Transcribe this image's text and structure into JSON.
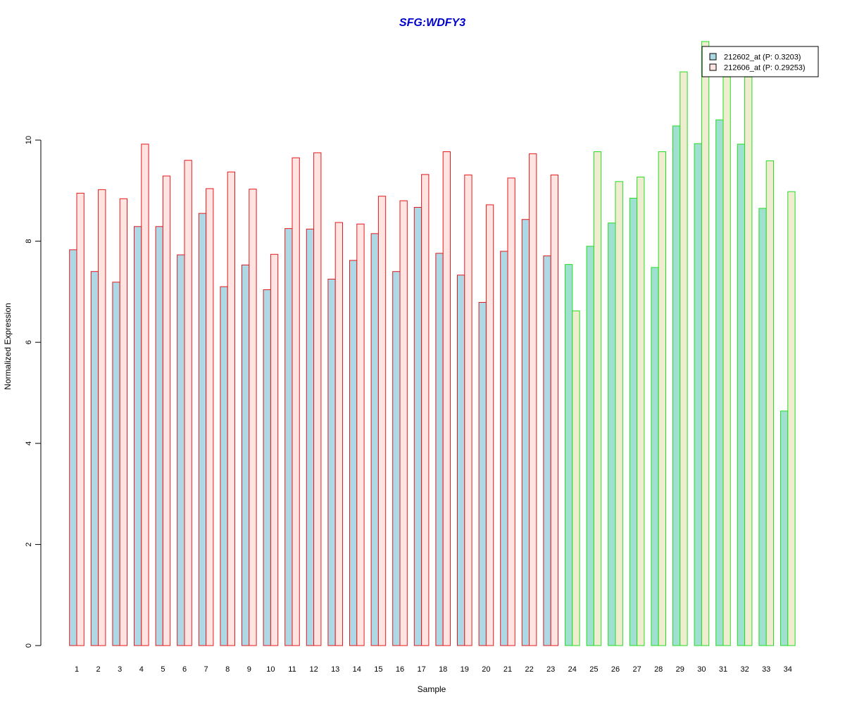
{
  "chart_data": {
    "type": "bar",
    "title": "SFG:WDFY3",
    "xlabel": "Sample",
    "ylabel": "Normalized Expression",
    "ylim": [
      0,
      12
    ],
    "yticks": [
      0,
      2,
      4,
      6,
      8,
      10
    ],
    "categories": [
      "1",
      "2",
      "3",
      "4",
      "5",
      "6",
      "7",
      "8",
      "9",
      "10",
      "11",
      "12",
      "13",
      "14",
      "15",
      "16",
      "17",
      "18",
      "19",
      "20",
      "21",
      "22",
      "23",
      "24",
      "25",
      "26",
      "27",
      "28",
      "29",
      "30",
      "31",
      "32",
      "33",
      "34"
    ],
    "groups": [
      {
        "from": 1,
        "to": 23,
        "border_color": "#e41a1c",
        "fills": [
          "#add8e6",
          "#ffe4e1"
        ]
      },
      {
        "from": 24,
        "to": 34,
        "border_color": "#22dd22",
        "fills": [
          "#a0e0d0",
          "#f0ecd0"
        ]
      }
    ],
    "series": [
      {
        "name": "212602_at (P: 0.3203)",
        "values": [
          7.83,
          7.4,
          7.19,
          8.29,
          8.29,
          7.73,
          8.55,
          7.1,
          7.53,
          7.04,
          8.25,
          8.24,
          7.25,
          7.62,
          8.15,
          7.4,
          8.67,
          7.76,
          7.33,
          6.79,
          7.8,
          8.43,
          7.71,
          7.54,
          7.9,
          8.36,
          8.85,
          7.48,
          10.28,
          9.93,
          10.4,
          9.92,
          8.65,
          4.64
        ]
      },
      {
        "name": "212606_at (P: 0.29253)",
        "values": [
          8.95,
          9.02,
          8.84,
          9.92,
          9.29,
          9.6,
          9.04,
          9.37,
          9.03,
          7.74,
          9.65,
          9.75,
          8.37,
          8.34,
          8.89,
          8.8,
          9.32,
          9.77,
          9.31,
          8.72,
          9.25,
          9.73,
          9.31,
          6.62,
          9.77,
          9.18,
          9.27,
          9.77,
          11.35,
          11.95,
          11.25,
          11.25,
          9.59,
          8.98
        ]
      }
    ],
    "legend": {
      "position": "top-right",
      "entries": [
        "212602_at (P: 0.3203)",
        "212606_at (P: 0.29253)"
      ],
      "swatch_fills": [
        "#add8e6",
        "#ffe4e1"
      ]
    },
    "grid": false
  }
}
